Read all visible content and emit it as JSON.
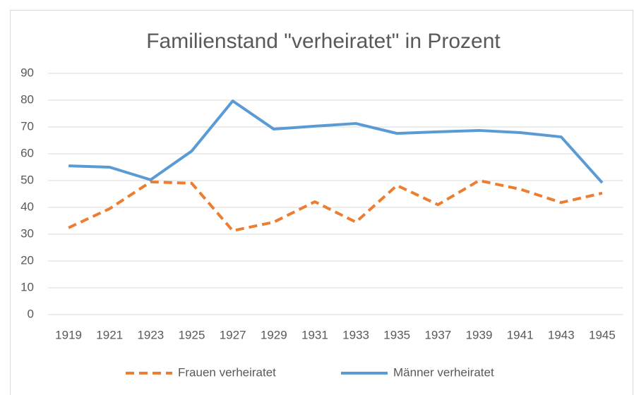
{
  "chart_data": {
    "type": "line",
    "title": "Familienstand \"verheiratet\" in Prozent",
    "categories": [
      "1919",
      "1921",
      "1923",
      "1925",
      "1927",
      "1929",
      "1931",
      "1933",
      "1935",
      "1937",
      "1939",
      "1941",
      "1943",
      "1945"
    ],
    "series": [
      {
        "name": "Frauen verheiratet",
        "color": "#ed7d31",
        "dashed": true,
        "values": [
          32.4,
          39.5,
          49.5,
          49,
          31.3,
          34.5,
          42.1,
          34.5,
          48.2,
          41,
          50,
          46.8,
          41.8,
          45.3
        ]
      },
      {
        "name": "Männer verheiratet",
        "color": "#5b9bd5",
        "dashed": false,
        "values": [
          55.5,
          55,
          50.3,
          61,
          79.7,
          69.2,
          70.3,
          71.3,
          67.6,
          68.2,
          68.7,
          67.9,
          66.3,
          49.2
        ]
      }
    ],
    "ylim": [
      0,
      90
    ],
    "yticks": [
      0,
      10,
      20,
      30,
      40,
      50,
      60,
      70,
      80,
      90
    ],
    "grid": true,
    "legend": "bottom"
  }
}
